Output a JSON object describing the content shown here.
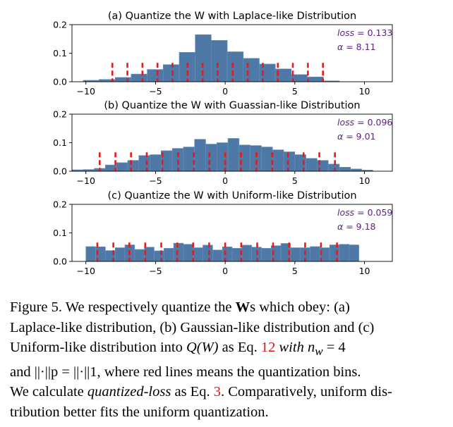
{
  "chart_data": [
    {
      "type": "bar",
      "title": "(a) Quantize the W with Laplace-like Distribution",
      "xlabel": "",
      "ylabel": "",
      "xlim": [
        -11,
        12
      ],
      "ylim": [
        0,
        0.2
      ],
      "xticks": [
        "−10",
        "−5",
        "0",
        "5",
        "10"
      ],
      "yticks": [
        "0.0",
        "0.1",
        "0.2"
      ],
      "bin_edges": [
        -10.2,
        -9.05,
        -7.9,
        -6.75,
        -5.6,
        -4.45,
        -3.3,
        -2.15,
        -1.0,
        0.15,
        1.3,
        2.45,
        3.6,
        4.75,
        5.9,
        7.05,
        8.2
      ],
      "values": [
        0.005,
        0.008,
        0.015,
        0.027,
        0.043,
        0.06,
        0.103,
        0.165,
        0.145,
        0.105,
        0.082,
        0.062,
        0.045,
        0.025,
        0.017,
        0.003
      ],
      "quantization_bins": [
        -8.1,
        -7.02,
        -5.94,
        -4.86,
        -3.78,
        -2.7,
        -1.62,
        -0.54,
        0.54,
        1.62,
        2.7,
        3.78,
        4.86,
        5.94,
        7.02
      ],
      "loss_label": "loss",
      "loss_value": "= 0.133",
      "alpha_label": "α",
      "alpha_value": "= 8.11"
    },
    {
      "type": "bar",
      "title": "(b) Quantize the W with Guassian-like Distribution",
      "xlabel": "",
      "ylabel": "",
      "xlim": [
        -11,
        12
      ],
      "ylim": [
        0,
        0.2
      ],
      "xticks": [
        "−10",
        "−5",
        "0",
        "5",
        "10"
      ],
      "yticks": [
        "0.0",
        "0.1",
        "0.2"
      ],
      "bin_edges": [
        -11.0,
        -10.2,
        -9.4,
        -8.6,
        -7.8,
        -7.0,
        -6.2,
        -5.4,
        -4.6,
        -3.8,
        -3.0,
        -2.2,
        -1.4,
        -0.6,
        0.2,
        1.0,
        1.8,
        2.6,
        3.4,
        4.2,
        5.0,
        5.8,
        6.6,
        7.4,
        8.2,
        9.0,
        9.8,
        10.6
      ],
      "values": [
        0.005,
        0.006,
        0.01,
        0.022,
        0.03,
        0.038,
        0.055,
        0.058,
        0.072,
        0.08,
        0.085,
        0.112,
        0.095,
        0.1,
        0.115,
        0.092,
        0.09,
        0.085,
        0.075,
        0.068,
        0.058,
        0.045,
        0.038,
        0.025,
        0.014,
        0.008,
        0.004
      ],
      "quantization_bins": [
        -9.01,
        -7.88,
        -6.76,
        -5.63,
        -4.51,
        -3.38,
        -2.25,
        -1.13,
        0.0,
        1.13,
        2.25,
        3.38,
        4.51,
        5.63,
        6.76,
        7.88
      ],
      "loss_label": "loss",
      "loss_value": "= 0.096",
      "alpha_label": "α",
      "alpha_value": "= 9.01"
    },
    {
      "type": "bar",
      "title": "(c) Quantize the W with Uniform-like Distribution",
      "xlabel": "",
      "ylabel": "",
      "xlim": [
        -11,
        12
      ],
      "ylim": [
        0,
        0.2
      ],
      "xticks": [
        "−10",
        "−5",
        "0",
        "5",
        "10"
      ],
      "yticks": [
        "0.0",
        "0.1",
        "0.2"
      ],
      "bin_edges": [
        -10.0,
        -9.3,
        -8.6,
        -7.9,
        -7.2,
        -6.5,
        -5.8,
        -5.1,
        -4.4,
        -3.7,
        -3.0,
        -2.3,
        -1.6,
        -0.9,
        -0.2,
        0.5,
        1.2,
        1.9,
        2.6,
        3.3,
        4.0,
        4.7,
        5.4,
        6.1,
        6.8,
        7.5,
        8.2,
        8.9,
        9.6
      ],
      "values": [
        0.052,
        0.051,
        0.038,
        0.048,
        0.058,
        0.042,
        0.05,
        0.037,
        0.046,
        0.064,
        0.06,
        0.048,
        0.057,
        0.04,
        0.051,
        0.046,
        0.057,
        0.05,
        0.046,
        0.055,
        0.063,
        0.048,
        0.048,
        0.052,
        0.048,
        0.058,
        0.06,
        0.058
      ],
      "quantization_bins": [
        -9.18,
        -8.03,
        -6.88,
        -5.74,
        -4.59,
        -3.44,
        -2.3,
        -1.15,
        0.0,
        1.15,
        2.3,
        3.44,
        4.59,
        5.74,
        6.88,
        8.03
      ],
      "loss_label": "loss",
      "loss_value": "= 0.059",
      "alpha_label": "α",
      "alpha_value": "= 9.18"
    }
  ],
  "colors": {
    "bar_fill": "#4e79a7",
    "bar_edge": "#6a8fb8",
    "quant_line": "#e41a1c",
    "annotation": "#5c2480"
  },
  "caption": {
    "line1_a": "Figure 5.  We respectively quantize the ",
    "line1_b": "W",
    "line1_c": "s which obey:  (a)",
    "line2": "Laplace-like distribution, (b) Gaussian-like distribution and (c)",
    "line3_a": "Uniform-like distribution into ",
    "line3_b": "Q(W)",
    "line3_c": " as Eq. ",
    "line3_ref": "12",
    "line3_d": " with n",
    "line3_sub": "w",
    "line3_e": " = 4",
    "line4": "and ||·||p = ||·||1, where red lines means the quantization bins.",
    "line5_a": "We calculate ",
    "line5_em": "quantized-loss",
    "line5_b": " as Eq. ",
    "line5_ref": "3",
    "line5_c": ". Comparatively, uniform dis-",
    "line6": "tribution better fits the uniform quantization."
  }
}
